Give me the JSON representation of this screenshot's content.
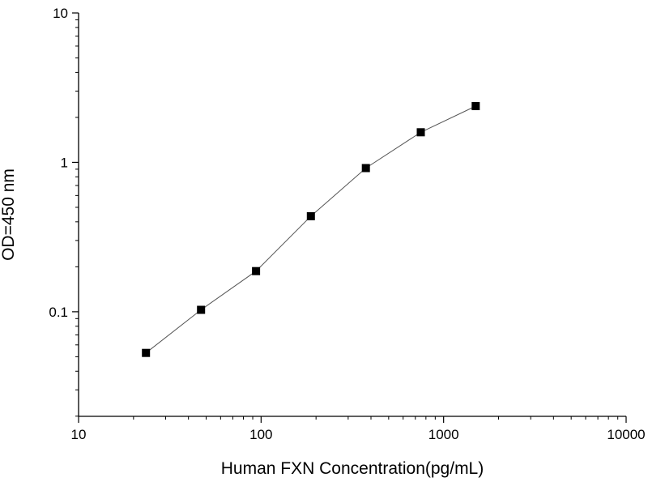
{
  "chart_data": {
    "type": "line",
    "title": "",
    "xlabel": "Human FXN Concentration(pg/mL)",
    "ylabel": "OD=450 nm",
    "x_scale": "log",
    "y_scale": "log",
    "xlim": [
      10,
      10000
    ],
    "ylim": [
      0.01995,
      10
    ],
    "x_ticks": [
      10,
      100,
      1000,
      10000
    ],
    "x_tick_labels": [
      "10",
      "100",
      "1000",
      "10000"
    ],
    "y_ticks": [
      0.1,
      1,
      10
    ],
    "y_tick_labels": [
      "0.1",
      "1",
      "10"
    ],
    "grid": false,
    "legend": "none",
    "marker": "square",
    "series": [
      {
        "x": [
          23.4,
          46.9,
          93.8,
          187.5,
          375,
          750,
          1500
        ],
        "y": [
          0.053,
          0.103,
          0.187,
          0.436,
          0.916,
          1.59,
          2.38
        ]
      }
    ],
    "colors": {
      "line": "#555555",
      "marker": "#000000",
      "axis": "#000000"
    }
  }
}
